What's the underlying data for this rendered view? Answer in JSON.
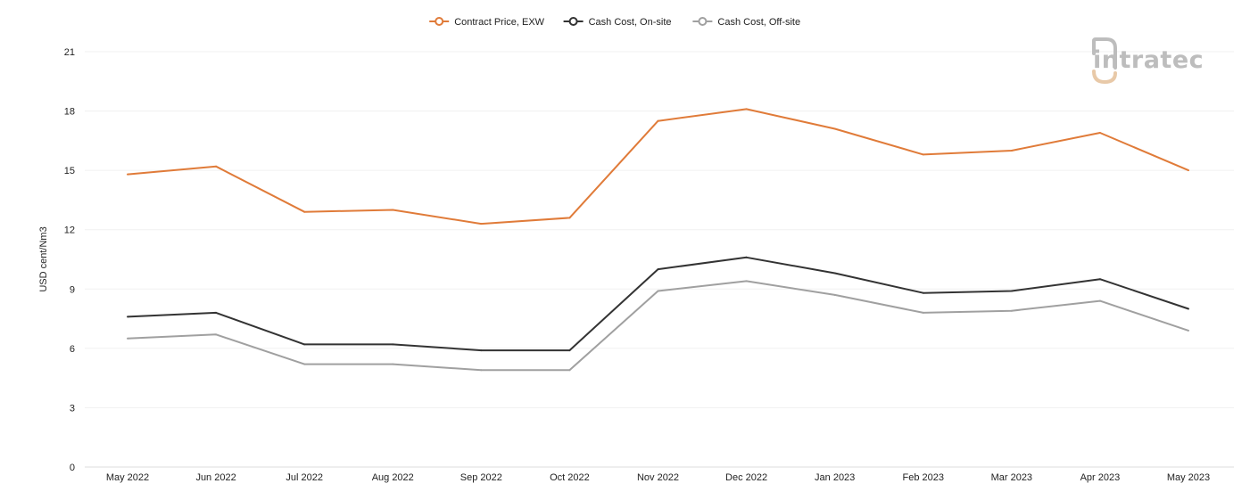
{
  "chart_data": {
    "type": "line",
    "title": "",
    "xlabel": "",
    "ylabel": "USD cent/Nm3",
    "ylim": [
      0,
      21
    ],
    "yticks": [
      0,
      3,
      6,
      9,
      12,
      15,
      18,
      21
    ],
    "grid": true,
    "legend_position": "top-center",
    "categories": [
      "May 2022",
      "Jun 2022",
      "Jul 2022",
      "Aug 2022",
      "Sep 2022",
      "Oct 2022",
      "Nov 2022",
      "Dec 2022",
      "Jan 2023",
      "Feb 2023",
      "Mar 2023",
      "Apr 2023",
      "May 2023"
    ],
    "series": [
      {
        "name": "Contract Price, EXW",
        "color": "#e07b39",
        "values": [
          14.8,
          15.2,
          12.9,
          13.0,
          12.3,
          12.6,
          17.5,
          18.1,
          17.1,
          15.8,
          16.0,
          16.9,
          15.0
        ]
      },
      {
        "name": "Cash Cost, On-site",
        "color": "#333333",
        "values": [
          7.6,
          7.8,
          6.2,
          6.2,
          5.9,
          5.9,
          10.0,
          10.6,
          9.8,
          8.8,
          8.9,
          9.5,
          8.0
        ]
      },
      {
        "name": "Cash Cost, Off-site",
        "color": "#a0a0a0",
        "values": [
          6.5,
          6.7,
          5.2,
          5.2,
          4.9,
          4.9,
          8.9,
          9.4,
          8.7,
          7.8,
          7.9,
          8.4,
          6.9
        ]
      }
    ]
  },
  "logo": {
    "text": "intratec",
    "color": "#bdbdbd",
    "accent": "#e8c9a8"
  }
}
